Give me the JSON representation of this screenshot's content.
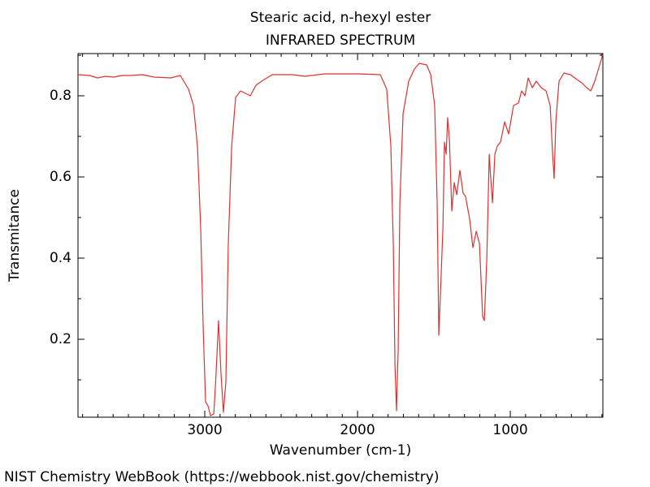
{
  "chart_data": {
    "type": "line",
    "title": "Stearic acid, n-hexyl ester",
    "subtitle": "INFRARED SPECTRUM",
    "x_label": "Wavenumber (cm-1)",
    "y_label": "Transmitance",
    "footer": "NIST Chemistry WebBook (https://webbook.nist.gov/chemistry)",
    "xlim": [
      3830,
      394
    ],
    "ylim": [
      0.008,
      0.904
    ],
    "xticks": [
      3000,
      2000,
      1000
    ],
    "yticks": [
      0.2,
      0.4,
      0.6,
      0.8
    ],
    "xticks_minor": [
      3800,
      3700,
      3600,
      3500,
      3400,
      3300,
      3200,
      3100,
      2900,
      2800,
      2700,
      2600,
      2500,
      2400,
      2300,
      2200,
      2100,
      1900,
      1800,
      1700,
      1600,
      1500,
      1400,
      1300,
      1200,
      1100,
      900,
      800,
      700,
      600,
      500,
      400
    ],
    "yticks_minor": [
      0.1,
      0.3,
      0.5,
      0.7,
      0.9
    ],
    "x": [
      3830,
      3755,
      3702,
      3649,
      3596,
      3543,
      3489,
      3410,
      3330,
      3223,
      3160,
      3106,
      3074,
      3048,
      3027,
      3011,
      2995,
      2979,
      2963,
      2941,
      2926,
      2910,
      2894,
      2878,
      2862,
      2846,
      2824,
      2798,
      2766,
      2734,
      2702,
      2665,
      2628,
      2559,
      2426,
      2346,
      2213,
      2000,
      1851,
      1809,
      1782,
      1766,
      1755,
      1745,
      1734,
      1723,
      1702,
      1665,
      1628,
      1596,
      1548,
      1521,
      1495,
      1479,
      1468,
      1457,
      1441,
      1431,
      1420,
      1410,
      1399,
      1383,
      1367,
      1351,
      1330,
      1309,
      1293,
      1266,
      1245,
      1223,
      1202,
      1181,
      1170,
      1154,
      1138,
      1128,
      1117,
      1101,
      1085,
      1064,
      1037,
      1011,
      979,
      947,
      926,
      904,
      883,
      856,
      830,
      798,
      766,
      739,
      723,
      713,
      702,
      681,
      649,
      606,
      564,
      532,
      500,
      473,
      447,
      415,
      394
    ],
    "series": [
      {
        "name": "Transmitance",
        "color": "#e03030",
        "values": [
          0.852,
          0.85,
          0.844,
          0.848,
          0.846,
          0.85,
          0.85,
          0.852,
          0.846,
          0.844,
          0.85,
          0.816,
          0.776,
          0.676,
          0.476,
          0.236,
          0.046,
          0.036,
          0.012,
          0.016,
          0.116,
          0.246,
          0.116,
          0.02,
          0.096,
          0.436,
          0.676,
          0.796,
          0.812,
          0.806,
          0.8,
          0.826,
          0.836,
          0.852,
          0.852,
          0.848,
          0.854,
          0.854,
          0.852,
          0.816,
          0.676,
          0.436,
          0.136,
          0.024,
          0.176,
          0.536,
          0.756,
          0.836,
          0.866,
          0.88,
          0.876,
          0.852,
          0.776,
          0.536,
          0.21,
          0.316,
          0.476,
          0.686,
          0.656,
          0.746,
          0.696,
          0.516,
          0.586,
          0.556,
          0.616,
          0.56,
          0.552,
          0.496,
          0.426,
          0.466,
          0.436,
          0.256,
          0.246,
          0.396,
          0.656,
          0.596,
          0.536,
          0.656,
          0.676,
          0.686,
          0.736,
          0.706,
          0.776,
          0.782,
          0.812,
          0.8,
          0.844,
          0.82,
          0.836,
          0.82,
          0.812,
          0.776,
          0.656,
          0.596,
          0.736,
          0.836,
          0.856,
          0.852,
          0.84,
          0.832,
          0.82,
          0.812,
          0.836,
          0.876,
          0.902
        ]
      }
    ]
  }
}
